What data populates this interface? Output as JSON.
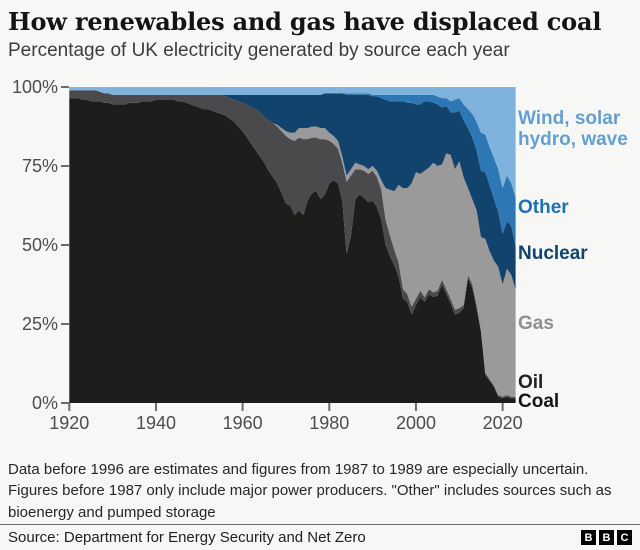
{
  "header": {
    "title": "How renewables and gas have displaced coal",
    "subtitle": "Percentage of UK electricity generated by source each year"
  },
  "chart_data": {
    "type": "area",
    "stacked": true,
    "unit": "percent of UK electricity generated",
    "ylim": [
      0,
      100
    ],
    "grid": false,
    "legend_position": "right",
    "x_ticks": [
      1920,
      1940,
      1960,
      1980,
      2000,
      2020
    ],
    "y_ticks": [
      {
        "value": 0,
        "label": "0%"
      },
      {
        "value": 25,
        "label": "25%"
      },
      {
        "value": 50,
        "label": "50%"
      },
      {
        "value": 75,
        "label": "75%"
      },
      {
        "value": 100,
        "label": "100%"
      }
    ],
    "years": [
      1920,
      1921,
      1922,
      1923,
      1924,
      1925,
      1926,
      1927,
      1928,
      1929,
      1930,
      1931,
      1932,
      1933,
      1934,
      1935,
      1936,
      1937,
      1938,
      1939,
      1940,
      1941,
      1942,
      1943,
      1944,
      1945,
      1946,
      1947,
      1948,
      1949,
      1950,
      1951,
      1952,
      1953,
      1954,
      1955,
      1956,
      1957,
      1958,
      1959,
      1960,
      1961,
      1962,
      1963,
      1964,
      1965,
      1966,
      1967,
      1968,
      1969,
      1970,
      1971,
      1972,
      1973,
      1974,
      1975,
      1976,
      1977,
      1978,
      1979,
      1980,
      1981,
      1982,
      1983,
      1984,
      1985,
      1986,
      1987,
      1988,
      1989,
      1990,
      1991,
      1992,
      1993,
      1994,
      1995,
      1996,
      1997,
      1998,
      1999,
      2000,
      2001,
      2002,
      2003,
      2004,
      2005,
      2006,
      2007,
      2008,
      2009,
      2010,
      2011,
      2012,
      2013,
      2014,
      2015,
      2016,
      2017,
      2018,
      2019,
      2020,
      2021,
      2022,
      2023
    ],
    "series": [
      {
        "id": "coal",
        "name": "Coal",
        "color": "#1d1d1b",
        "label_color": "#151515",
        "values": [
          96.5,
          96.5,
          96.5,
          96,
          96,
          95.5,
          95.5,
          95.5,
          95,
          95,
          94.5,
          94.5,
          94.5,
          94.5,
          95,
          95,
          95,
          95.5,
          95.5,
          95.5,
          96,
          96,
          96,
          96,
          96,
          95.5,
          95.5,
          95,
          94.5,
          94,
          93.5,
          93,
          93,
          92.5,
          92,
          91.5,
          91,
          90,
          89,
          87.5,
          86,
          84,
          82,
          80,
          78,
          76,
          73.5,
          71.5,
          69.5,
          66.5,
          63,
          62.5,
          59.5,
          61,
          59.5,
          64,
          66.5,
          67,
          64.5,
          66,
          69.5,
          70.5,
          69.5,
          64,
          47,
          53,
          64.5,
          66,
          65,
          63.5,
          64,
          62,
          58,
          50,
          46.5,
          43.5,
          40,
          33,
          32,
          28,
          31,
          33.5,
          32,
          34.5,
          33.5,
          34,
          37.5,
          34.5,
          31.5,
          28,
          28.5,
          30,
          39.5,
          36.5,
          30,
          22.5,
          9,
          7,
          5,
          2,
          1.5,
          2,
          1.5,
          1.5
        ]
      },
      {
        "id": "oil",
        "name": "Oil",
        "color": "#4a4a4c",
        "label_color": "#222222",
        "values": [
          2.5,
          2.5,
          2.5,
          3,
          3,
          3.5,
          3.5,
          3,
          3,
          3,
          3,
          3,
          3,
          3,
          2.5,
          2.5,
          2.5,
          2,
          2,
          2,
          1.5,
          1.5,
          1.5,
          1.5,
          1.5,
          2,
          2,
          2.5,
          3,
          3.5,
          4,
          4.5,
          4.5,
          5,
          5.5,
          6,
          6,
          6.5,
          7,
          8,
          9,
          10.5,
          11.5,
          13,
          14,
          14.5,
          16,
          17,
          18,
          19.5,
          21.5,
          21,
          23.5,
          23,
          24,
          19.5,
          17.5,
          17,
          19,
          17.5,
          13.5,
          11.5,
          11,
          12,
          23,
          19,
          9.5,
          8,
          8.5,
          9,
          9.5,
          9.5,
          9.5,
          8,
          6.5,
          5,
          4.5,
          3,
          2.5,
          2.5,
          2,
          2,
          1.5,
          1.5,
          1.5,
          1.5,
          1.5,
          1.5,
          1.5,
          1.5,
          1.5,
          1,
          1,
          1,
          1,
          0.5,
          0.5,
          0.5,
          0.5,
          0.5,
          0.5,
          0.5,
          0.5,
          0.5
        ]
      },
      {
        "id": "gas",
        "name": "Gas",
        "color": "#9a9a9a",
        "label_color": "#8f8f8f",
        "values": [
          0,
          0,
          0,
          0,
          0,
          0,
          0,
          0,
          0,
          0,
          0,
          0,
          0,
          0,
          0,
          0,
          0,
          0,
          0,
          0,
          0,
          0,
          0,
          0,
          0,
          0,
          0,
          0,
          0,
          0,
          0,
          0,
          0,
          0,
          0,
          0,
          0,
          0,
          0,
          0,
          0,
          0,
          0,
          0,
          0,
          0,
          0,
          0,
          0.5,
          1,
          1.5,
          2,
          2.5,
          3,
          3.5,
          3.5,
          3.5,
          3.5,
          3.5,
          3.5,
          2.5,
          2.5,
          2.5,
          2,
          2,
          2,
          2,
          1.5,
          1.5,
          1.5,
          1.5,
          2,
          3,
          10,
          14.5,
          18.5,
          24.5,
          32,
          33.5,
          39,
          40,
          37,
          40,
          38.5,
          41,
          39.5,
          36.5,
          43,
          45.5,
          44.5,
          46.5,
          40.5,
          27.5,
          27,
          30,
          29.5,
          42.5,
          40.5,
          39.5,
          40.5,
          35.5,
          40,
          38.5,
          34
        ]
      },
      {
        "id": "nuclear",
        "name": "Nuclear",
        "color": "#12436d",
        "label_color": "#12436d",
        "values": [
          0,
          0,
          0,
          0,
          0,
          0,
          0,
          0,
          0,
          0,
          0,
          0,
          0,
          0,
          0,
          0,
          0,
          0,
          0,
          0,
          0,
          0,
          0,
          0,
          0,
          0,
          0,
          0,
          0,
          0,
          0,
          0,
          0,
          0,
          0,
          0,
          0.5,
          1,
          1.5,
          2,
          2.5,
          3,
          4,
          4.5,
          5.5,
          7,
          8,
          9,
          9.5,
          10.5,
          11.5,
          12,
          12,
          10.5,
          10.5,
          10.5,
          10,
          10,
          10.5,
          11,
          12.5,
          13.5,
          15,
          20,
          25.5,
          23.5,
          21.5,
          22,
          22.5,
          23.5,
          22,
          23.5,
          26,
          28,
          28,
          28.5,
          26.5,
          27.5,
          27,
          25.5,
          21.5,
          22,
          22,
          21,
          19,
          19.5,
          18,
          15,
          13.5,
          18,
          16,
          18,
          19,
          19.5,
          19,
          21,
          21,
          21,
          19.5,
          17.5,
          16,
          15,
          15.5,
          13.5
        ]
      },
      {
        "id": "other",
        "name": "Other",
        "color": "#2e77b5",
        "label_color": "#1f6fb2",
        "values": [
          0,
          0,
          0,
          0,
          0,
          0,
          0,
          0,
          0,
          0,
          0,
          0,
          0,
          0,
          0,
          0,
          0,
          0,
          0,
          0,
          0,
          0,
          0,
          0,
          0,
          0,
          0,
          0,
          0,
          0,
          0,
          0,
          0,
          0,
          0,
          0,
          0,
          0,
          0,
          0,
          0,
          0,
          0,
          0,
          0,
          0,
          0,
          0,
          0,
          0,
          0,
          0,
          0,
          0,
          0,
          0,
          0,
          0,
          0,
          0,
          0,
          0,
          0,
          0,
          0.5,
          0.5,
          0.5,
          0.5,
          0.5,
          0.5,
          0.5,
          0.5,
          1,
          1.5,
          2,
          2,
          2,
          2,
          2.5,
          2.5,
          3,
          3,
          2,
          2,
          2.5,
          2.5,
          3,
          2.5,
          3.5,
          4,
          4,
          5,
          6,
          7.5,
          9,
          12,
          12,
          12,
          13,
          13.5,
          14.5,
          14.5,
          13.5,
          15.5
        ]
      },
      {
        "id": "renewables",
        "name": "Wind, solar\nhydro, wave",
        "color": "#7fb2dd",
        "label_color": "#639fd3",
        "values": [
          1,
          1,
          1,
          1,
          1,
          1,
          1,
          1.5,
          2,
          2,
          2.5,
          2.5,
          2.5,
          2.5,
          2.5,
          2.5,
          2.5,
          2.5,
          2.5,
          2.5,
          2.5,
          2.5,
          2.5,
          2.5,
          2.5,
          2.5,
          2.5,
          2.5,
          2.5,
          2.5,
          2.5,
          2.5,
          2.5,
          2.5,
          2.5,
          2.5,
          2.5,
          2.5,
          2.5,
          2.5,
          2.5,
          2.5,
          2.5,
          2.5,
          2.5,
          2.5,
          2.5,
          2.5,
          2.5,
          2.5,
          2.5,
          2.5,
          2.5,
          2.5,
          2.5,
          2.5,
          2.5,
          2.5,
          2.5,
          2,
          2,
          2,
          2,
          2,
          2,
          2,
          2,
          2,
          2,
          2,
          2.5,
          2.5,
          2.5,
          2.5,
          2.5,
          2.5,
          2.5,
          2.5,
          2.5,
          2.5,
          2.5,
          2.5,
          2.5,
          2.5,
          2.5,
          3,
          3.5,
          3.5,
          4.5,
          4,
          3.5,
          5.5,
          7,
          8.5,
          11,
          14.5,
          15,
          19,
          22.5,
          26,
          32,
          28,
          30.5,
          35
        ]
      }
    ]
  },
  "footnote": "Data before 1996 are estimates and figures from 1987 to 1989 are especially uncertain. Figures before 1987 only include major power producers. \"Other\" includes sources such as bioenergy and pumped storage",
  "source": {
    "label": "Source: Department for Energy Security and Net Zero"
  },
  "logo": {
    "letters": [
      "B",
      "B",
      "C"
    ]
  }
}
